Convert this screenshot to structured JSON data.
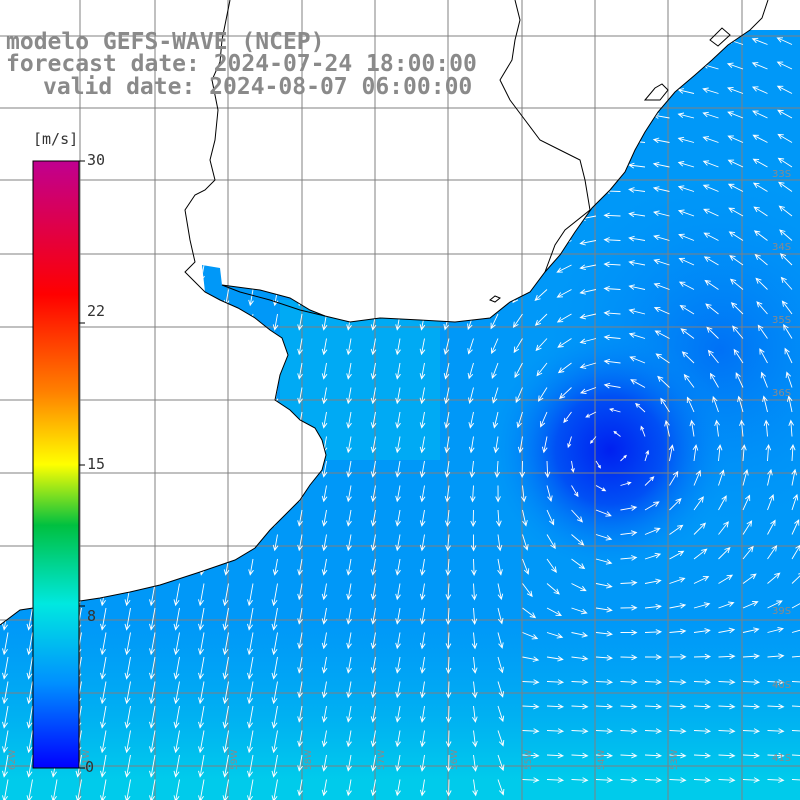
{
  "title": {
    "line1": "modelo GEFS-WAVE (NCEP)",
    "line2": "forecast date: 2024-07-24 18:00:00",
    "line3": "valid date: 2024-08-07 06:00:00"
  },
  "colorbar": {
    "unit": "[m/s]",
    "ticks": [
      "30",
      "22",
      "15",
      "8",
      "0"
    ],
    "tick_values": [
      30,
      22,
      15,
      8,
      0
    ],
    "range": [
      0,
      30
    ],
    "colors": [
      "#0000ff",
      "#0090ff",
      "#00e0e0",
      "#00c000",
      "#ffff00",
      "#ff8000",
      "#ff0000",
      "#c00090"
    ]
  },
  "map": {
    "land_color": "#ffffff",
    "grid_color": "#808080",
    "coast_color": "#000000",
    "lat_labels": [
      "33S",
      "34S",
      "35S",
      "36S",
      "39S",
      "40S",
      "41S"
    ],
    "lon_labels": [
      "62W",
      "61W",
      "59W",
      "58W",
      "57W",
      "56W",
      "55W",
      "54W",
      "53W"
    ]
  }
}
